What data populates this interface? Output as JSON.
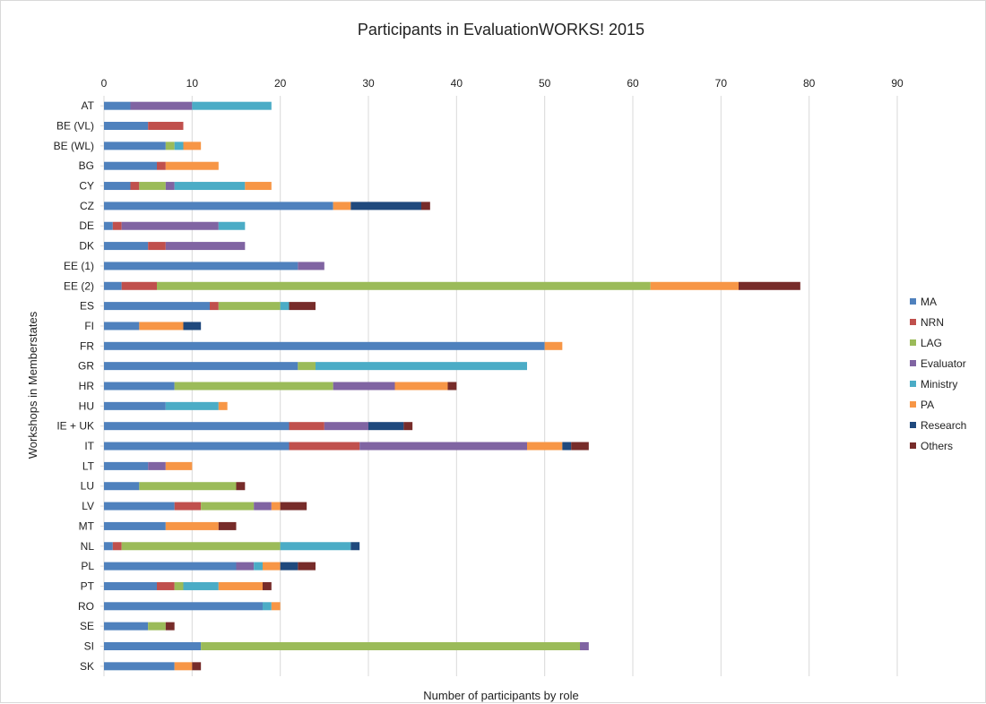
{
  "chart_data": {
    "type": "bar",
    "orientation": "horizontal",
    "stacked": true,
    "title": "Participants in EvaluationWORKS! 2015",
    "xlabel": "Number  of participants by role",
    "ylabel": "Workshops in Memberstates",
    "xlim": [
      0,
      90
    ],
    "x_ticks": [
      0,
      10,
      20,
      30,
      40,
      50,
      60,
      70,
      80,
      90
    ],
    "x_axis_position": "top",
    "grid": true,
    "legend_position": "right",
    "categories": [
      "AT",
      "BE (VL)",
      "BE (WL)",
      "BG",
      "CY",
      "CZ",
      "DE",
      "DK",
      "EE (1)",
      "EE (2)",
      "ES",
      "FI",
      "FR",
      "GR",
      "HR",
      "HU",
      "IE + UK",
      "IT",
      "LT",
      "LU",
      "LV",
      "MT",
      "NL",
      "PL",
      "PT",
      "RO",
      "SE",
      "SI",
      "SK"
    ],
    "series": [
      {
        "name": "MA",
        "color": "#4F81BD",
        "values": [
          3,
          5,
          7,
          6,
          3,
          26,
          1,
          5,
          22,
          2,
          12,
          4,
          50,
          22,
          8,
          7,
          21,
          21,
          5,
          4,
          8,
          7,
          1,
          15,
          6,
          18,
          5,
          11,
          8
        ]
      },
      {
        "name": "NRN",
        "color": "#C0504D",
        "values": [
          0,
          4,
          0,
          1,
          1,
          0,
          1,
          2,
          0,
          4,
          1,
          0,
          0,
          0,
          0,
          0,
          4,
          8,
          0,
          0,
          3,
          0,
          1,
          0,
          2,
          0,
          0,
          0,
          0
        ]
      },
      {
        "name": "LAG",
        "color": "#9BBB59",
        "values": [
          0,
          0,
          1,
          0,
          3,
          0,
          0,
          0,
          0,
          56,
          7,
          0,
          0,
          2,
          18,
          0,
          0,
          0,
          0,
          11,
          6,
          0,
          18,
          0,
          1,
          0,
          2,
          43,
          0
        ]
      },
      {
        "name": "Evaluator",
        "color": "#8064A2",
        "values": [
          7,
          0,
          0,
          0,
          1,
          0,
          11,
          9,
          3,
          0,
          0,
          0,
          0,
          0,
          7,
          0,
          5,
          19,
          2,
          0,
          2,
          0,
          0,
          2,
          0,
          0,
          0,
          1,
          0
        ]
      },
      {
        "name": "Ministry",
        "color": "#4BACC6",
        "values": [
          9,
          0,
          1,
          0,
          8,
          0,
          3,
          0,
          0,
          0,
          1,
          0,
          0,
          24,
          0,
          6,
          0,
          0,
          0,
          0,
          0,
          0,
          8,
          1,
          4,
          1,
          0,
          0,
          0
        ]
      },
      {
        "name": "PA",
        "color": "#F79646",
        "values": [
          0,
          0,
          2,
          6,
          3,
          2,
          0,
          0,
          0,
          10,
          0,
          5,
          2,
          0,
          6,
          1,
          0,
          4,
          3,
          0,
          1,
          6,
          0,
          2,
          5,
          1,
          0,
          0,
          2
        ]
      },
      {
        "name": "Research",
        "color": "#1F497D",
        "values": [
          0,
          0,
          0,
          0,
          0,
          8,
          0,
          0,
          0,
          0,
          0,
          2,
          0,
          0,
          0,
          0,
          4,
          1,
          0,
          0,
          0,
          0,
          1,
          2,
          0,
          0,
          0,
          0,
          0
        ]
      },
      {
        "name": "Others",
        "color": "#772C2A",
        "values": [
          0,
          0,
          0,
          0,
          0,
          1,
          0,
          0,
          0,
          7,
          3,
          0,
          0,
          0,
          1,
          0,
          1,
          2,
          0,
          1,
          3,
          2,
          0,
          2,
          1,
          0,
          1,
          0,
          1
        ]
      }
    ]
  }
}
